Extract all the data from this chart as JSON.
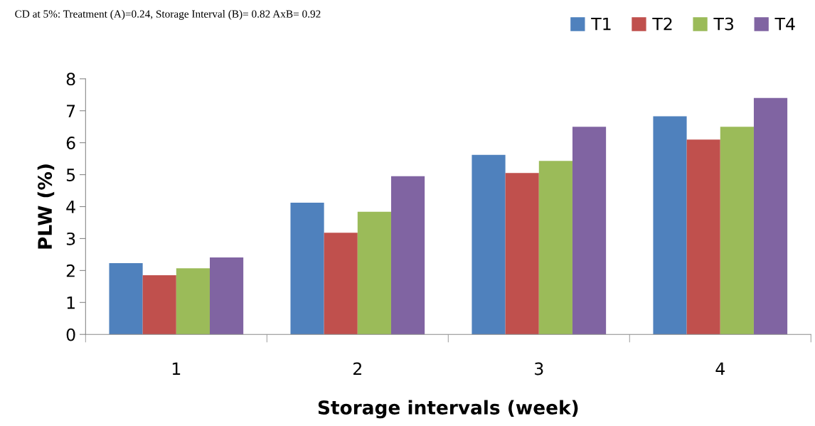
{
  "chart_data": {
    "type": "bar",
    "xlabel": "Storage intervals (week)",
    "ylabel": "PLW (%)",
    "annotations": [
      "CD at 5%: Treatment (A)=0.24, Storage Interval (B)= 0.82 AxB= 0.92"
    ],
    "categories": [
      "1",
      "2",
      "3",
      "4"
    ],
    "series": [
      {
        "name": "T1",
        "color": "#4f81bd",
        "values": [
          2.23,
          4.12,
          5.62,
          6.83
        ]
      },
      {
        "name": "T2",
        "color": "#c0504d",
        "values": [
          1.85,
          3.18,
          5.05,
          6.1
        ]
      },
      {
        "name": "T3",
        "color": "#9bbb59",
        "values": [
          2.07,
          3.84,
          5.43,
          6.5
        ]
      },
      {
        "name": "T4",
        "color": "#8064a2",
        "values": [
          2.41,
          4.95,
          6.5,
          7.4
        ]
      }
    ],
    "ylim": [
      0,
      8
    ],
    "yticks": [
      0,
      1,
      2,
      3,
      4,
      5,
      6,
      7,
      8
    ],
    "grid": false,
    "legend": "top right"
  }
}
